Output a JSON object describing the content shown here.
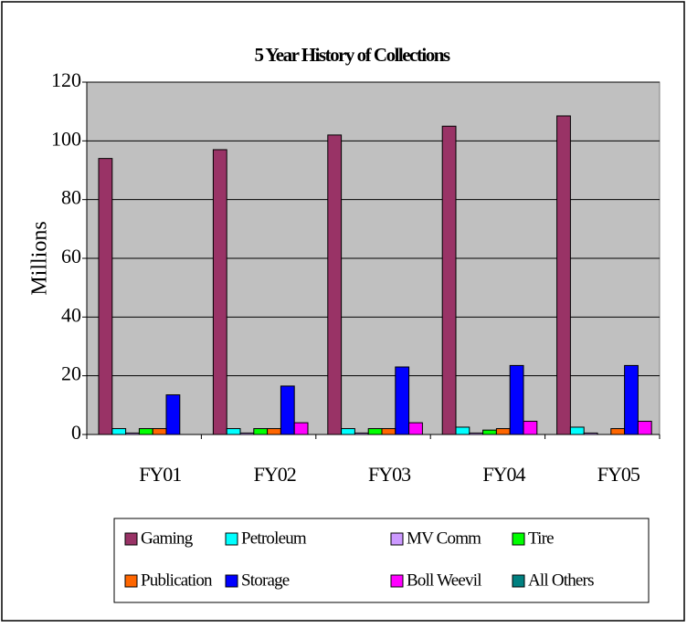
{
  "chart_data": {
    "type": "bar",
    "title": "5 Year History of Collections",
    "y_label": "Millions",
    "categories": [
      "FY01",
      "FY02",
      "FY03",
      "FY04",
      "FY05"
    ],
    "series": [
      {
        "name": "Gaming",
        "color": "#993366",
        "values": [
          94,
          97,
          102,
          105,
          108.5
        ]
      },
      {
        "name": "Petroleum",
        "color": "#00ffff",
        "values": [
          2,
          2,
          2,
          2.5,
          2.5
        ]
      },
      {
        "name": "MV Comm",
        "color": "#cc99ff",
        "values": [
          0.5,
          0.5,
          0.5,
          0.5,
          0.5
        ]
      },
      {
        "name": "Tire",
        "color": "#00ff00",
        "values": [
          2,
          2,
          2,
          1.5,
          0
        ]
      },
      {
        "name": "Publication",
        "color": "#ff6600",
        "values": [
          2,
          2,
          2,
          2,
          2
        ]
      },
      {
        "name": "Storage",
        "color": "#0000ff",
        "values": [
          13.5,
          16.5,
          23,
          23.5,
          23.5
        ]
      },
      {
        "name": "Boll Weevil",
        "color": "#ff00ff",
        "values": [
          0,
          4,
          4,
          4.5,
          4.5
        ]
      },
      {
        "name": "All Others",
        "color": "#008080",
        "values": [
          0,
          0,
          0,
          0,
          0
        ]
      }
    ],
    "ylim": [
      0,
      120
    ],
    "yticks": [
      0,
      20,
      40,
      60,
      80,
      100,
      120
    ],
    "grid": true,
    "legend": "bottom"
  }
}
